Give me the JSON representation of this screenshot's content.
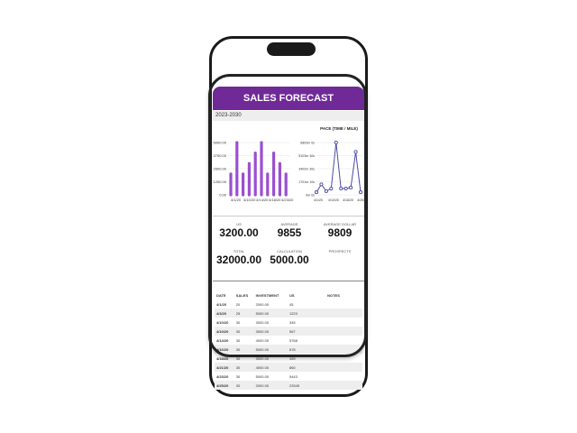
{
  "header": {
    "title": "SALES FORECAST",
    "range": "2023-2030"
  },
  "colors": {
    "accent": "#6f2a97",
    "bar": "#9b4fd0",
    "line": "#4a4aa8"
  },
  "chart_data": [
    {
      "type": "bar",
      "title": "",
      "yticks": [
        "0.00",
        "1250.00",
        "2500.00",
        "3750.00",
        "5000.00"
      ],
      "ylim": [
        0,
        5000
      ],
      "xticks": [
        "4/1/20",
        "4/10/20",
        "4/14/20",
        "4/18/20",
        "4/23/20"
      ],
      "values": [
        2000,
        5000,
        2000,
        3000,
        4000,
        5000,
        2000,
        4000,
        3000,
        2000
      ]
    },
    {
      "type": "line",
      "title": "PACE (TIME / MILE)",
      "yticks": [
        "0m 0s",
        "1701m 10s",
        "3402m 30s",
        "5103m 40s",
        "6803m 0s"
      ],
      "ylim": [
        0,
        6803
      ],
      "xticks": [
        "4/1/20",
        "4/10/20",
        "4/18/20",
        "4/25/20"
      ],
      "values": [
        340,
        1360,
        480,
        820,
        6803,
        820,
        820,
        950,
        5580,
        340
      ]
    }
  ],
  "stats": [
    {
      "label": "US",
      "value": "3200.00"
    },
    {
      "label": "AVERAGE",
      "value": "9855"
    },
    {
      "label": "AVERAGE DOLLAR",
      "value": "9809"
    },
    {
      "label": "TOTAL",
      "value": "32000.00"
    },
    {
      "label": "CALCULATION",
      "value": "5000.00"
    },
    {
      "label": "PROSPECTS",
      "value": ""
    }
  ],
  "table": {
    "headers": [
      "DATE",
      "SALES",
      "INVESTMENT",
      "US",
      "NOTES"
    ],
    "rows": [
      [
        "4/1/20",
        "20",
        "2000.00",
        "45"
      ],
      [
        "4/3/20",
        "25",
        "5000.00",
        "1223"
      ],
      [
        "4/10/20",
        "30",
        "3000.00",
        "345"
      ],
      [
        "4/10/20",
        "30",
        "3000.00",
        "567"
      ],
      [
        "4/14/20",
        "30",
        "4000.00",
        "5768"
      ],
      [
        "4/16/20",
        "30",
        "5000.00",
        "678"
      ],
      [
        "4/18/20",
        "30",
        "3000.00",
        "459"
      ],
      [
        "4/21/20",
        "30",
        "4000.00",
        "860"
      ],
      [
        "4/23/20",
        "30",
        "5000.00",
        "5443"
      ],
      [
        "4/25/20",
        "30",
        "2000.00",
        "23345"
      ]
    ]
  }
}
